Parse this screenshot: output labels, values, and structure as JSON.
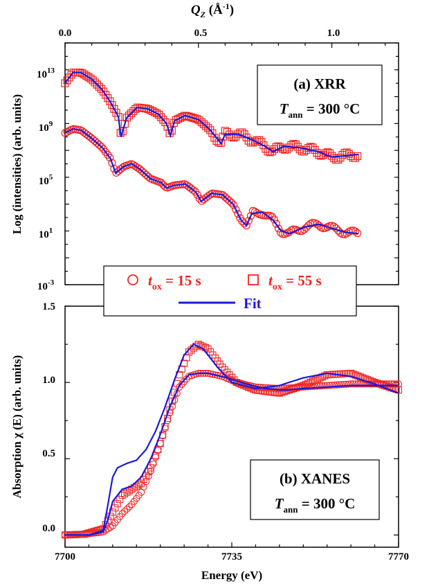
{
  "colors": {
    "data": "#ee2222",
    "fit": "#1a1ad9",
    "axis": "#000000"
  },
  "panel_a": {
    "top_axis_label_main": "Q",
    "top_axis_label_sub": "Z",
    "top_axis_label_unit": "(Å",
    "top_axis_label_sup": "-1",
    "top_axis_label_close": ")",
    "top_ticks": [
      "0.0",
      "0.5",
      "1.0"
    ],
    "ylabel": "Log (intensities) (arb. units)",
    "y_ticks": [
      {
        "base": "10",
        "exp": "13"
      },
      {
        "base": "10",
        "exp": "9"
      },
      {
        "base": "10",
        "exp": "5"
      },
      {
        "base": "10",
        "exp": "1"
      },
      {
        "base": "10",
        "exp": "-3"
      }
    ],
    "box_line1": "(a)  XRR",
    "box_T": "T",
    "box_sub": "ann",
    "box_rest": " = 300 °C"
  },
  "legend": {
    "circle_t": "t",
    "circle_sub": "ox",
    "circle_rest": " = 15 s",
    "square_t": "t",
    "square_sub": "ox",
    "square_rest": " = 55 s",
    "fit": "Fit"
  },
  "panel_b": {
    "ylabel": "Absorption χ (E) (arb. units)",
    "y_ticks": [
      "1.5",
      "1.0",
      "0.5",
      "0.0"
    ],
    "x_ticks": [
      "7700",
      "7735",
      "7770"
    ],
    "xlabel": "Energy (eV)",
    "box_line1": "(b)  XANES",
    "box_T": "T",
    "box_sub": "ann",
    "box_rest": " = 300 °C"
  },
  "chart_data": [
    {
      "type": "scatter",
      "title": "(a) XRR",
      "xlabel": "Q_Z (Å^-1)",
      "ylabel": "Log (intensities) (arb. units)",
      "xlim": [
        0.0,
        1.25
      ],
      "ylim_log10": [
        -3,
        15
      ],
      "y_scale": "log",
      "legend_position": "bottom-center",
      "series": [
        {
          "name": "t_ox = 55 s",
          "marker": "square",
          "x": [
            0.0,
            0.03,
            0.06,
            0.1,
            0.14,
            0.17,
            0.2,
            0.21,
            0.23,
            0.27,
            0.31,
            0.35,
            0.38,
            0.395,
            0.41,
            0.45,
            0.5,
            0.54,
            0.57,
            0.585,
            0.6,
            0.65,
            0.7,
            0.75,
            0.78,
            0.82,
            0.88,
            0.95,
            1.0,
            1.05,
            1.1
          ],
          "log10_y": [
            12.0,
            12.8,
            12.8,
            12.3,
            11.5,
            10.6,
            9.5,
            8.0,
            9.4,
            10.2,
            10.1,
            9.7,
            9.0,
            8.1,
            9.2,
            9.6,
            9.3,
            8.6,
            7.9,
            7.5,
            8.2,
            8.2,
            7.8,
            7.3,
            6.9,
            7.3,
            7.2,
            6.9,
            6.5,
            6.6,
            6.7
          ]
        },
        {
          "name": "t_ox = 15 s",
          "marker": "circle",
          "x": [
            0.0,
            0.03,
            0.06,
            0.1,
            0.14,
            0.17,
            0.19,
            0.22,
            0.25,
            0.28,
            0.32,
            0.36,
            0.38,
            0.41,
            0.45,
            0.49,
            0.51,
            0.55,
            0.59,
            0.63,
            0.66,
            0.68,
            0.7,
            0.74,
            0.78,
            0.81,
            0.84,
            0.9,
            0.95,
            1.0,
            1.05,
            1.1
          ],
          "log10_y": [
            8.3,
            8.6,
            8.5,
            7.9,
            7.2,
            6.4,
            5.3,
            5.8,
            6.0,
            5.6,
            4.9,
            4.6,
            4.2,
            4.4,
            4.5,
            3.9,
            3.2,
            3.8,
            3.7,
            3.0,
            1.8,
            1.4,
            2.3,
            2.4,
            1.8,
            1.0,
            0.8,
            1.3,
            1.5,
            1.2,
            0.9,
            0.8
          ]
        },
        {
          "name": "Fit",
          "marker": "line",
          "note": "fits to both curves"
        }
      ]
    },
    {
      "type": "line",
      "title": "(b) XANES",
      "xlabel": "Energy (eV)",
      "ylabel": "Absorption χ (E) (arb. units)",
      "xlim": [
        7700,
        7770
      ],
      "ylim": [
        -0.08,
        1.5
      ],
      "series": [
        {
          "name": "t_ox = 15 s",
          "marker": "circle",
          "x": [
            7700,
            7704,
            7708,
            7710,
            7712,
            7714,
            7716,
            7718,
            7720,
            7722,
            7724,
            7726,
            7728,
            7730,
            7733,
            7736,
            7740,
            7745,
            7750,
            7755,
            7760,
            7765,
            7770
          ],
          "y": [
            0.0,
            0.005,
            0.02,
            0.06,
            0.14,
            0.2,
            0.28,
            0.42,
            0.6,
            0.8,
            0.97,
            1.04,
            1.06,
            1.06,
            1.04,
            1.0,
            0.97,
            0.96,
            0.97,
            0.98,
            0.99,
            0.99,
            0.99
          ]
        },
        {
          "name": "t_ox = 55 s",
          "marker": "square",
          "x": [
            7700,
            7704,
            7708,
            7710,
            7712,
            7714,
            7716,
            7718,
            7720,
            7722,
            7724,
            7726,
            7728,
            7730,
            7733,
            7736,
            7740,
            7745,
            7750,
            7755,
            7760,
            7765,
            7770
          ],
          "y": [
            0.0,
            0.005,
            0.04,
            0.15,
            0.26,
            0.3,
            0.34,
            0.44,
            0.6,
            0.82,
            1.05,
            1.2,
            1.25,
            1.22,
            1.1,
            1.0,
            0.95,
            0.93,
            0.98,
            1.05,
            1.06,
            1.0,
            0.95
          ]
        },
        {
          "name": "Fit 15 s",
          "marker": "line",
          "x": [
            7700,
            7705,
            7708,
            7709,
            7710,
            7712,
            7714,
            7716,
            7718,
            7720,
            7722,
            7724,
            7726,
            7728,
            7730,
            7734,
            7738,
            7742,
            7746,
            7750,
            7755,
            7760,
            7765,
            7770
          ],
          "y": [
            0.0,
            0.0,
            0.02,
            0.1,
            0.22,
            0.3,
            0.32,
            0.38,
            0.5,
            0.66,
            0.84,
            0.98,
            1.05,
            1.06,
            1.06,
            1.03,
            0.99,
            0.96,
            0.95,
            0.96,
            0.97,
            0.98,
            0.98,
            0.98
          ]
        },
        {
          "name": "Fit 55 s",
          "marker": "line",
          "x": [
            7700,
            7705,
            7708,
            7709,
            7710,
            7711,
            7713,
            7715,
            7717,
            7719,
            7721,
            7723,
            7725,
            7727,
            7729,
            7732,
            7735,
            7740,
            7745,
            7750,
            7755,
            7760,
            7765,
            7770
          ],
          "y": [
            0.0,
            0.0,
            0.03,
            0.2,
            0.38,
            0.44,
            0.47,
            0.49,
            0.56,
            0.68,
            0.84,
            1.02,
            1.18,
            1.25,
            1.22,
            1.1,
            1.0,
            0.96,
            0.98,
            1.03,
            1.06,
            1.04,
            0.99,
            0.93
          ]
        }
      ]
    }
  ]
}
